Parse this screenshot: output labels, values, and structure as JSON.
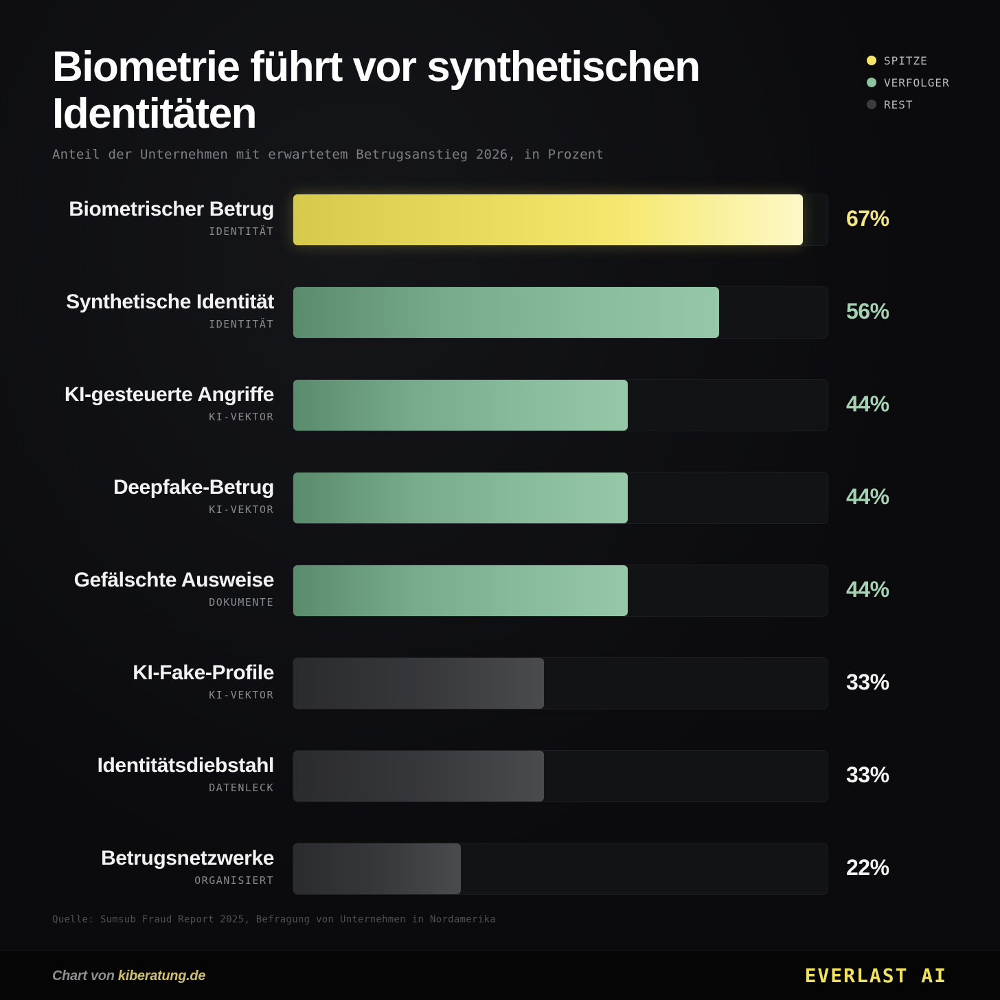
{
  "header": {
    "title": "Biometrie führt vor synthetischen Identitäten",
    "subtitle": "Anteil der Unternehmen mit erwartetem Betrugsanstieg 2026, in Prozent"
  },
  "legend": [
    {
      "label": "SPITZE",
      "color": "#f3e46a"
    },
    {
      "label": "VERFOLGER",
      "color": "#8cc3a0"
    },
    {
      "label": "REST",
      "color": "#3b3c40"
    }
  ],
  "chart_data": {
    "type": "bar",
    "orientation": "horizontal",
    "title": "Biometrie führt vor synthetischen Identitäten",
    "subtitle": "Anteil der Unternehmen mit erwartetem Betrugsanstieg 2026, in Prozent",
    "xlim": [
      0,
      70
    ],
    "grid": false,
    "legend_position": "top-right",
    "categories": [
      "Biometrischer Betrug",
      "Synthetische Identität",
      "KI-gesteuerte Angriffe",
      "Deepfake-Betrug",
      "Gefälschte Ausweise",
      "KI-Fake-Profile",
      "Identitätsdiebstahl",
      "Betrugsnetzwerke"
    ],
    "groups": [
      "IDENTITÄT",
      "IDENTITÄT",
      "KI-VEKTOR",
      "KI-VEKTOR",
      "DOKUMENTE",
      "KI-VEKTOR",
      "DATENLECK",
      "ORGANISIERT"
    ],
    "values": [
      67,
      56,
      44,
      44,
      44,
      33,
      33,
      22
    ],
    "value_labels": [
      "67%",
      "56%",
      "44%",
      "44%",
      "44%",
      "33%",
      "33%",
      "22%"
    ],
    "tiers": [
      "SPITZE",
      "VERFOLGER",
      "VERFOLGER",
      "VERFOLGER",
      "VERFOLGER",
      "REST",
      "REST",
      "REST"
    ],
    "value_label_colors": [
      "#f3e583",
      "#a6d2b4",
      "#a6d2b4",
      "#a6d2b4",
      "#a6d2b4",
      "#f2f2f2",
      "#f2f2f2",
      "#f2f2f2"
    ]
  },
  "source": "Quelle: Sumsub Fraud Report 2025, Befragung von Unternehmen in Nordamerika",
  "footer": {
    "credit_prefix": "Chart von",
    "credit_link": "kiberatung.de",
    "brand": "EVERLAST AI"
  }
}
